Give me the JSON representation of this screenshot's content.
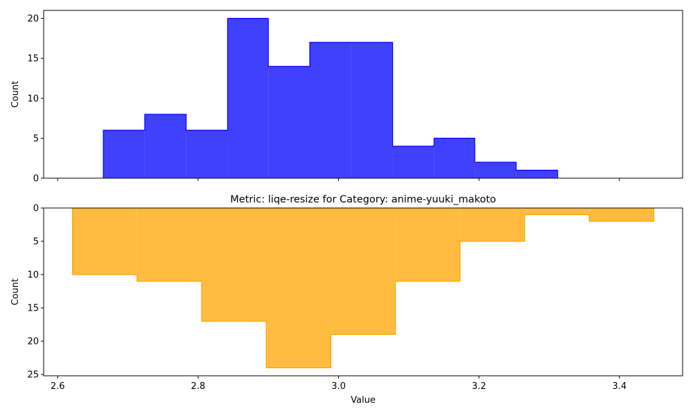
{
  "chart_data": [
    {
      "type": "histogram",
      "title": "",
      "xlabel": "",
      "ylabel": "Count",
      "color": "#0000ff",
      "fill_opacity": 0.75,
      "y_inverted": false,
      "xlim": [
        2.58,
        3.49
      ],
      "ylim": [
        0,
        21
      ],
      "x_ticks": [
        2.6,
        2.8,
        3.0,
        3.2,
        3.4
      ],
      "x_tick_labels_visible": false,
      "y_ticks": [
        0,
        5,
        10,
        15,
        20
      ],
      "bins": [
        {
          "x0": 2.665,
          "x1": 2.724,
          "count": 6
        },
        {
          "x0": 2.724,
          "x1": 2.783,
          "count": 8
        },
        {
          "x0": 2.783,
          "x1": 2.842,
          "count": 6
        },
        {
          "x0": 2.842,
          "x1": 2.9,
          "count": 20
        },
        {
          "x0": 2.9,
          "x1": 2.959,
          "count": 14
        },
        {
          "x0": 2.959,
          "x1": 3.018,
          "count": 17
        },
        {
          "x0": 3.018,
          "x1": 3.077,
          "count": 17
        },
        {
          "x0": 3.077,
          "x1": 3.136,
          "count": 4
        },
        {
          "x0": 3.136,
          "x1": 3.194,
          "count": 5
        },
        {
          "x0": 3.194,
          "x1": 3.253,
          "count": 2
        },
        {
          "x0": 3.253,
          "x1": 3.312,
          "count": 1
        }
      ]
    },
    {
      "type": "histogram",
      "title": "Metric: liqe-resize for Category: anime-yuuki_makoto",
      "xlabel": "Value",
      "ylabel": "Count",
      "color": "#ffa500",
      "fill_opacity": 0.75,
      "y_inverted": true,
      "xlim": [
        2.58,
        3.49
      ],
      "ylim": [
        0,
        25.2
      ],
      "x_ticks": [
        2.6,
        2.8,
        3.0,
        3.2,
        3.4
      ],
      "x_tick_labels_visible": true,
      "y_ticks": [
        0,
        5,
        10,
        15,
        20,
        25
      ],
      "bins": [
        {
          "x0": 2.621,
          "x1": 2.713,
          "count": 10
        },
        {
          "x0": 2.713,
          "x1": 2.805,
          "count": 11
        },
        {
          "x0": 2.805,
          "x1": 2.897,
          "count": 17
        },
        {
          "x0": 2.897,
          "x1": 2.989,
          "count": 24
        },
        {
          "x0": 2.989,
          "x1": 3.081,
          "count": 19
        },
        {
          "x0": 3.081,
          "x1": 3.173,
          "count": 11
        },
        {
          "x0": 3.173,
          "x1": 3.265,
          "count": 5
        },
        {
          "x0": 3.265,
          "x1": 3.357,
          "count": 1
        },
        {
          "x0": 3.357,
          "x1": 3.449,
          "count": 2
        }
      ]
    }
  ]
}
